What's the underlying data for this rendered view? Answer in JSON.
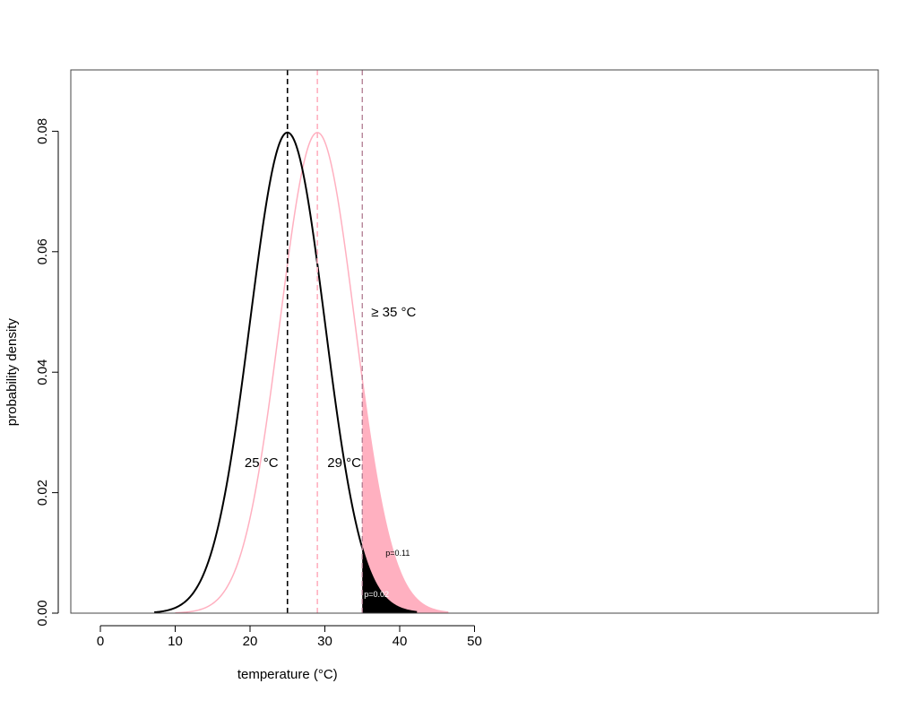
{
  "chart_data": {
    "type": "line",
    "title": "",
    "xlabel": "temperature (°C)",
    "ylabel": "probability density",
    "xlim": [
      -2,
      52
    ],
    "ylim": [
      0,
      0.09
    ],
    "x_ticks": [
      0,
      10,
      20,
      30,
      40,
      50
    ],
    "x_tick_labels": [
      "0",
      "10",
      "20",
      "30",
      "40",
      "50"
    ],
    "y_ticks": [
      0,
      0.02,
      0.04,
      0.06,
      0.08
    ],
    "y_tick_labels": [
      "0.00",
      "0.02",
      "0.04",
      "0.06",
      "0.08"
    ],
    "grid": false,
    "threshold": 35,
    "series": [
      {
        "mean": 25,
        "sd": 5,
        "x_range": [
          7.2,
          42.3
        ],
        "color": "#000000",
        "mean_label": "25 °C",
        "tail_fill": "#000000",
        "tail_probability_label": "p=0.02"
      },
      {
        "mean": 29,
        "sd": 5,
        "x_range": [
          10,
          46.5
        ],
        "color": "#ffb0c0",
        "mean_label": "29 °C",
        "tail_fill": "#ffb0c0",
        "tail_probability_label": "p=0.11"
      }
    ],
    "annotations": {
      "threshold_label": "≥ 35 °C"
    }
  }
}
